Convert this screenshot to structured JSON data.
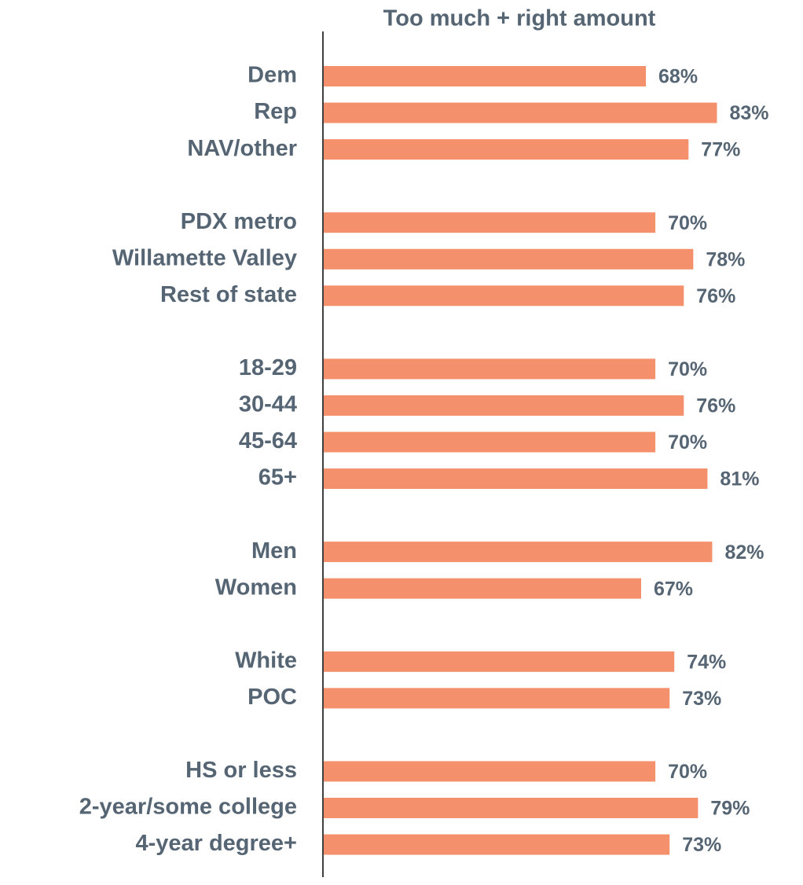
{
  "chart_data": {
    "type": "bar",
    "orientation": "horizontal",
    "title": "Too much + right amount",
    "categories": [
      "Dem",
      "Rep",
      "NAV/other",
      null,
      "PDX metro",
      "Willamette Valley",
      "Rest of state",
      null,
      "18-29",
      "30-44",
      "45-64",
      "65+",
      null,
      "Men",
      "Women",
      null,
      "White",
      "POC",
      null,
      "HS or less",
      "2-year/some college",
      "4-year degree+"
    ],
    "values": [
      68,
      83,
      77,
      null,
      70,
      78,
      76,
      null,
      70,
      76,
      70,
      81,
      null,
      82,
      67,
      null,
      74,
      73,
      null,
      70,
      79,
      73
    ],
    "value_labels": [
      "68%",
      "83%",
      "77%",
      null,
      "70%",
      "78%",
      "76%",
      null,
      "70%",
      "76%",
      "70%",
      "81%",
      null,
      "82%",
      "67%",
      null,
      "74%",
      "73%",
      null,
      "70%",
      "79%",
      "73%"
    ],
    "color": "#f4906b",
    "xlim": [
      0,
      100
    ]
  }
}
